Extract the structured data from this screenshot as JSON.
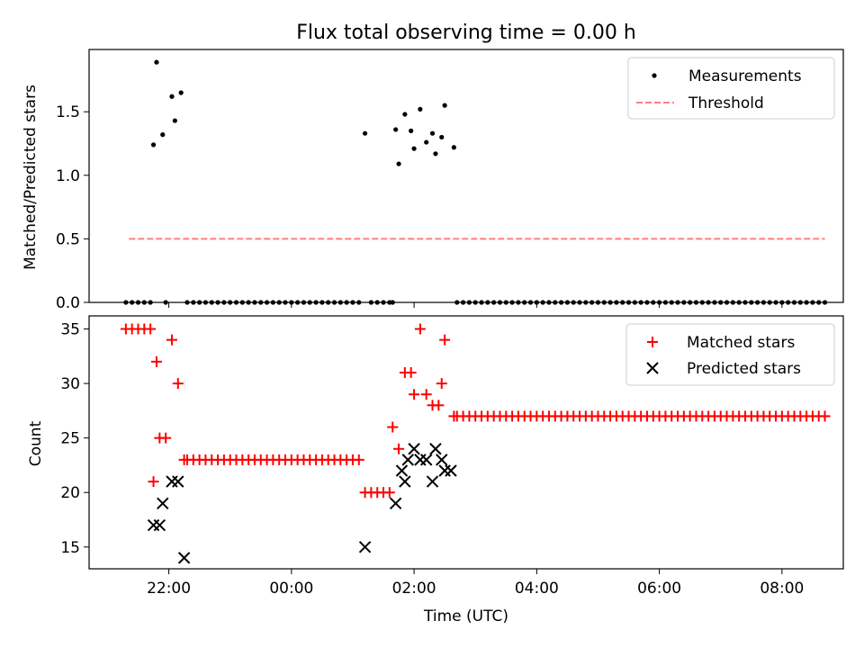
{
  "chart_data": [
    {
      "type": "scatter",
      "title": "Flux total observing time = 0.00 h",
      "xlabel": "",
      "ylabel": "Matched/Predicted stars",
      "x_unit": "hours UTC (values past 24 wrap to next day)",
      "xlim": [
        20.7,
        33.0
      ],
      "ylim": [
        0,
        1.99
      ],
      "yticks": [
        0.0,
        0.5,
        1.0,
        1.5
      ],
      "ytick_labels": [
        "0.0",
        "0.5",
        "1.0",
        "1.5"
      ],
      "legend_position": "upper right",
      "grid": false,
      "series": [
        {
          "name": "Measurements",
          "kind": "points",
          "color": "#000000",
          "points": [
            [
              21.3,
              0
            ],
            [
              21.4,
              0
            ],
            [
              21.5,
              0
            ],
            [
              21.6,
              0
            ],
            [
              21.7,
              0
            ],
            [
              21.75,
              1.24
            ],
            [
              21.8,
              1.89
            ],
            [
              21.9,
              1.32
            ],
            [
              21.95,
              0
            ],
            [
              22.05,
              1.62
            ],
            [
              22.1,
              1.43
            ],
            [
              22.2,
              1.65
            ],
            [
              22.3,
              0
            ],
            [
              22.4,
              0
            ],
            [
              22.5,
              0
            ],
            [
              22.6,
              0
            ],
            [
              22.7,
              0
            ],
            [
              22.8,
              0
            ],
            [
              22.9,
              0
            ],
            [
              23.0,
              0
            ],
            [
              23.1,
              0
            ],
            [
              23.2,
              0
            ],
            [
              23.3,
              0
            ],
            [
              23.4,
              0
            ],
            [
              23.5,
              0
            ],
            [
              23.6,
              0
            ],
            [
              23.7,
              0
            ],
            [
              23.8,
              0
            ],
            [
              23.9,
              0
            ],
            [
              24.0,
              0
            ],
            [
              24.1,
              0
            ],
            [
              24.2,
              0
            ],
            [
              24.3,
              0
            ],
            [
              24.4,
              0
            ],
            [
              24.5,
              0
            ],
            [
              24.6,
              0
            ],
            [
              24.7,
              0
            ],
            [
              24.8,
              0
            ],
            [
              24.9,
              0
            ],
            [
              25.0,
              0
            ],
            [
              25.1,
              0
            ],
            [
              25.2,
              1.33
            ],
            [
              25.3,
              0
            ],
            [
              25.4,
              0
            ],
            [
              25.5,
              0
            ],
            [
              25.6,
              0
            ],
            [
              25.65,
              0
            ],
            [
              25.7,
              1.36
            ],
            [
              25.75,
              1.09
            ],
            [
              25.85,
              1.48
            ],
            [
              25.95,
              1.35
            ],
            [
              26.0,
              1.21
            ],
            [
              26.1,
              1.52
            ],
            [
              26.2,
              1.26
            ],
            [
              26.3,
              1.33
            ],
            [
              26.35,
              1.17
            ],
            [
              26.45,
              1.3
            ],
            [
              26.5,
              1.55
            ],
            [
              26.65,
              1.22
            ],
            [
              26.7,
              0
            ],
            [
              26.8,
              0
            ],
            [
              26.9,
              0
            ],
            [
              27.0,
              0
            ],
            [
              27.1,
              0
            ],
            [
              27.2,
              0
            ],
            [
              27.3,
              0
            ],
            [
              27.4,
              0
            ],
            [
              27.5,
              0
            ],
            [
              27.6,
              0
            ],
            [
              27.7,
              0
            ],
            [
              27.8,
              0
            ],
            [
              27.9,
              0
            ],
            [
              28.0,
              0
            ],
            [
              28.1,
              0
            ],
            [
              28.2,
              0
            ],
            [
              28.3,
              0
            ],
            [
              28.4,
              0
            ],
            [
              28.5,
              0
            ],
            [
              28.6,
              0
            ],
            [
              28.7,
              0
            ],
            [
              28.8,
              0
            ],
            [
              28.9,
              0
            ],
            [
              29.0,
              0
            ],
            [
              29.1,
              0
            ],
            [
              29.2,
              0
            ],
            [
              29.3,
              0
            ],
            [
              29.4,
              0
            ],
            [
              29.5,
              0
            ],
            [
              29.6,
              0
            ],
            [
              29.7,
              0
            ],
            [
              29.8,
              0
            ],
            [
              29.9,
              0
            ],
            [
              30.0,
              0
            ],
            [
              30.1,
              0
            ],
            [
              30.2,
              0
            ],
            [
              30.3,
              0
            ],
            [
              30.4,
              0
            ],
            [
              30.5,
              0
            ],
            [
              30.6,
              0
            ],
            [
              30.7,
              0
            ],
            [
              30.8,
              0
            ],
            [
              30.9,
              0
            ],
            [
              31.0,
              0
            ],
            [
              31.1,
              0
            ],
            [
              31.2,
              0
            ],
            [
              31.3,
              0
            ],
            [
              31.4,
              0
            ],
            [
              31.5,
              0
            ],
            [
              31.6,
              0
            ],
            [
              31.7,
              0
            ],
            [
              31.8,
              0
            ],
            [
              31.9,
              0
            ],
            [
              32.0,
              0
            ],
            [
              32.1,
              0
            ],
            [
              32.2,
              0
            ],
            [
              32.3,
              0
            ],
            [
              32.4,
              0
            ],
            [
              32.5,
              0
            ],
            [
              32.6,
              0
            ],
            [
              32.7,
              0
            ]
          ]
        },
        {
          "name": "Threshold",
          "kind": "dashed-line",
          "color": "#ff7f7f",
          "points": [
            [
              21.35,
              0.5
            ],
            [
              32.7,
              0.5
            ]
          ]
        }
      ]
    },
    {
      "type": "scatter",
      "title": "",
      "xlabel": "Time (UTC)",
      "ylabel": "Count",
      "x_unit": "hours UTC (values past 24 wrap to next day)",
      "xlim": [
        20.7,
        33.0
      ],
      "ylim": [
        13.0,
        36.2
      ],
      "xticks": [
        22,
        24,
        26,
        28,
        30,
        32
      ],
      "xtick_labels": [
        "22:00",
        "00:00",
        "02:00",
        "04:00",
        "06:00",
        "08:00"
      ],
      "yticks": [
        15,
        20,
        25,
        30,
        35
      ],
      "ytick_labels": [
        "15",
        "20",
        "25",
        "30",
        "35"
      ],
      "legend_position": "upper right",
      "grid": false,
      "series": [
        {
          "name": "Matched stars",
          "kind": "plus",
          "color": "#ff0000",
          "points": [
            [
              21.3,
              35
            ],
            [
              21.4,
              35
            ],
            [
              21.5,
              35
            ],
            [
              21.6,
              35
            ],
            [
              21.7,
              35
            ],
            [
              21.75,
              21
            ],
            [
              21.8,
              32
            ],
            [
              21.85,
              25
            ],
            [
              21.95,
              25
            ],
            [
              22.05,
              34
            ],
            [
              22.15,
              30
            ],
            [
              22.25,
              23
            ],
            [
              22.3,
              23
            ],
            [
              22.4,
              23
            ],
            [
              22.5,
              23
            ],
            [
              22.6,
              23
            ],
            [
              22.7,
              23
            ],
            [
              22.8,
              23
            ],
            [
              22.9,
              23
            ],
            [
              23.0,
              23
            ],
            [
              23.1,
              23
            ],
            [
              23.2,
              23
            ],
            [
              23.3,
              23
            ],
            [
              23.4,
              23
            ],
            [
              23.5,
              23
            ],
            [
              23.6,
              23
            ],
            [
              23.7,
              23
            ],
            [
              23.8,
              23
            ],
            [
              23.9,
              23
            ],
            [
              24.0,
              23
            ],
            [
              24.1,
              23
            ],
            [
              24.2,
              23
            ],
            [
              24.3,
              23
            ],
            [
              24.4,
              23
            ],
            [
              24.5,
              23
            ],
            [
              24.6,
              23
            ],
            [
              24.7,
              23
            ],
            [
              24.8,
              23
            ],
            [
              24.9,
              23
            ],
            [
              25.0,
              23
            ],
            [
              25.1,
              23
            ],
            [
              25.2,
              20
            ],
            [
              25.3,
              20
            ],
            [
              25.4,
              20
            ],
            [
              25.5,
              20
            ],
            [
              25.6,
              20
            ],
            [
              25.65,
              26
            ],
            [
              25.75,
              24
            ],
            [
              25.85,
              31
            ],
            [
              25.95,
              31
            ],
            [
              26.0,
              29
            ],
            [
              26.1,
              35
            ],
            [
              26.2,
              29
            ],
            [
              26.3,
              28
            ],
            [
              26.4,
              28
            ],
            [
              26.45,
              30
            ],
            [
              26.5,
              34
            ],
            [
              26.65,
              27
            ],
            [
              26.7,
              27
            ],
            [
              26.8,
              27
            ],
            [
              26.9,
              27
            ],
            [
              27.0,
              27
            ],
            [
              27.1,
              27
            ],
            [
              27.2,
              27
            ],
            [
              27.3,
              27
            ],
            [
              27.4,
              27
            ],
            [
              27.5,
              27
            ],
            [
              27.6,
              27
            ],
            [
              27.7,
              27
            ],
            [
              27.8,
              27
            ],
            [
              27.9,
              27
            ],
            [
              28.0,
              27
            ],
            [
              28.1,
              27
            ],
            [
              28.2,
              27
            ],
            [
              28.3,
              27
            ],
            [
              28.4,
              27
            ],
            [
              28.5,
              27
            ],
            [
              28.6,
              27
            ],
            [
              28.7,
              27
            ],
            [
              28.8,
              27
            ],
            [
              28.9,
              27
            ],
            [
              29.0,
              27
            ],
            [
              29.1,
              27
            ],
            [
              29.2,
              27
            ],
            [
              29.3,
              27
            ],
            [
              29.4,
              27
            ],
            [
              29.5,
              27
            ],
            [
              29.6,
              27
            ],
            [
              29.7,
              27
            ],
            [
              29.8,
              27
            ],
            [
              29.9,
              27
            ],
            [
              30.0,
              27
            ],
            [
              30.1,
              27
            ],
            [
              30.2,
              27
            ],
            [
              30.3,
              27
            ],
            [
              30.4,
              27
            ],
            [
              30.5,
              27
            ],
            [
              30.6,
              27
            ],
            [
              30.7,
              27
            ],
            [
              30.8,
              27
            ],
            [
              30.9,
              27
            ],
            [
              31.0,
              27
            ],
            [
              31.1,
              27
            ],
            [
              31.2,
              27
            ],
            [
              31.3,
              27
            ],
            [
              31.4,
              27
            ],
            [
              31.5,
              27
            ],
            [
              31.6,
              27
            ],
            [
              31.7,
              27
            ],
            [
              31.8,
              27
            ],
            [
              31.9,
              27
            ],
            [
              32.0,
              27
            ],
            [
              32.1,
              27
            ],
            [
              32.2,
              27
            ],
            [
              32.3,
              27
            ],
            [
              32.4,
              27
            ],
            [
              32.5,
              27
            ],
            [
              32.6,
              27
            ],
            [
              32.7,
              27
            ]
          ]
        },
        {
          "name": "Predicted stars",
          "kind": "cross",
          "color": "#000000",
          "points": [
            [
              21.75,
              17
            ],
            [
              21.85,
              17
            ],
            [
              21.9,
              19
            ],
            [
              22.05,
              21
            ],
            [
              22.15,
              21
            ],
            [
              22.25,
              14
            ],
            [
              25.2,
              15
            ],
            [
              25.7,
              19
            ],
            [
              25.8,
              22
            ],
            [
              25.85,
              21
            ],
            [
              25.9,
              23
            ],
            [
              26.0,
              24
            ],
            [
              26.1,
              23
            ],
            [
              26.2,
              23
            ],
            [
              26.3,
              21
            ],
            [
              26.35,
              24
            ],
            [
              26.45,
              23
            ],
            [
              26.5,
              22
            ],
            [
              26.6,
              22
            ]
          ]
        }
      ]
    }
  ]
}
